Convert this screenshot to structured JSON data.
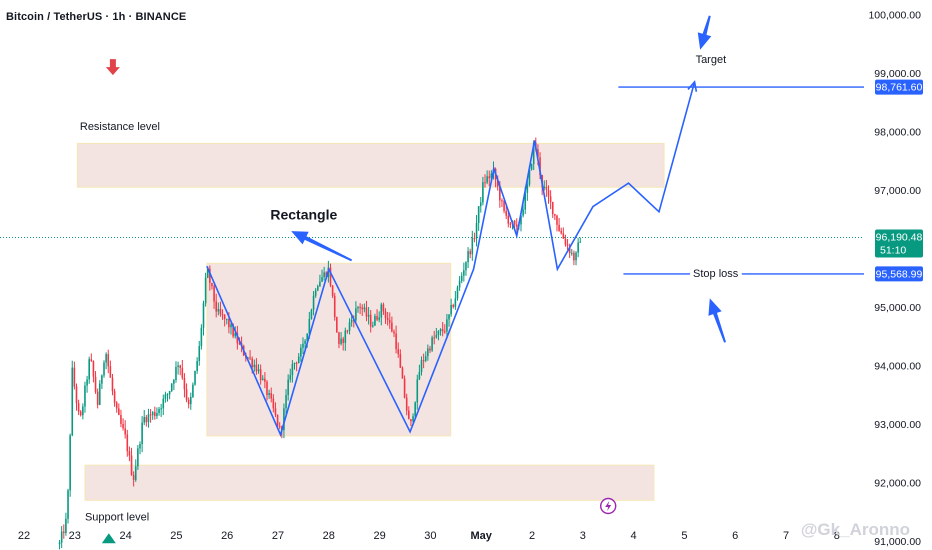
{
  "header": {
    "symbol_title": "Bitcoin / TetherUS · 1h · BINANCE"
  },
  "watermark": "@Gk_Aronno",
  "chart_data": {
    "type": "candlestick",
    "ylim": [
      90850,
      100250
    ],
    "y_ticks": [
      {
        "value": 100000,
        "label": "100,000.00"
      },
      {
        "value": 99000,
        "label": "99,000.00"
      },
      {
        "value": 98000,
        "label": "98,000.00"
      },
      {
        "value": 97000,
        "label": "97,000.00"
      },
      {
        "value": 95000,
        "label": "95,000.00"
      },
      {
        "value": 94000,
        "label": "94,000.00"
      },
      {
        "value": 93000,
        "label": "93,000.00"
      },
      {
        "value": 92000,
        "label": "92,000.00"
      },
      {
        "value": 91000,
        "label": "91,000.00"
      }
    ],
    "x_ticks": [
      {
        "day": 22,
        "label": "22"
      },
      {
        "day": 23,
        "label": "23"
      },
      {
        "day": 24,
        "label": "24"
      },
      {
        "day": 25,
        "label": "25"
      },
      {
        "day": 26,
        "label": "26"
      },
      {
        "day": 27,
        "label": "27"
      },
      {
        "day": 28,
        "label": "28"
      },
      {
        "day": 29,
        "label": "29"
      },
      {
        "day": 30,
        "label": "30"
      },
      {
        "day": 31,
        "label": "May"
      },
      {
        "day": 32,
        "label": "2"
      },
      {
        "day": 33,
        "label": "3"
      },
      {
        "day": 34,
        "label": "4"
      },
      {
        "day": 35,
        "label": "5"
      },
      {
        "day": 36,
        "label": "6"
      },
      {
        "day": 37,
        "label": "7"
      },
      {
        "day": 38,
        "label": "8"
      }
    ],
    "price_tags": [
      {
        "name": "target-price",
        "value": 98761.6,
        "label": "98,761.60",
        "color": "#2962ff"
      },
      {
        "name": "current-price",
        "value": 96190.48,
        "label": "96,190.48",
        "sublabel": "51:10",
        "color": "#089981"
      },
      {
        "name": "stoploss-price",
        "value": 95568.99,
        "label": "95,568.99",
        "color": "#2962ff"
      }
    ],
    "zones": [
      {
        "name": "resistance-zone",
        "x0": 23.05,
        "x1": 34.6,
        "y0": 97050,
        "y1": 97800
      },
      {
        "name": "rectangle-zone",
        "x0": 25.6,
        "x1": 30.4,
        "y0": 92800,
        "y1": 95750
      },
      {
        "name": "support-zone",
        "x0": 23.2,
        "x1": 34.4,
        "y0": 91700,
        "y1": 92300
      }
    ],
    "annotations": [
      {
        "name": "resistance-label",
        "text": "Resistance level",
        "x": 23.1,
        "y": 98030,
        "bold": false,
        "size": 11
      },
      {
        "name": "support-label",
        "text": "Support level",
        "x": 23.2,
        "y": 91350,
        "bold": false,
        "size": 11
      },
      {
        "name": "rectangle-label",
        "text": "Rectangle",
        "x": 26.85,
        "y": 96500,
        "bold": true,
        "size": 14
      },
      {
        "name": "target-label",
        "text": "Target",
        "x": 35.22,
        "y": 99170,
        "bold": false,
        "size": 11
      },
      {
        "name": "stoploss-label",
        "text": "Stop loss",
        "x": 35.17,
        "y": 95520,
        "bold": false,
        "size": 11
      }
    ],
    "levels": [
      {
        "name": "target-line",
        "x0": 33.7,
        "value": 98761.6,
        "color": "#2962ff"
      },
      {
        "name": "stoploss-line",
        "x0": 33.8,
        "value": 95568.99,
        "color": "#2962ff"
      }
    ],
    "current_price": 96190.48,
    "pattern_line": [
      [
        25.6,
        95700
      ],
      [
        27.05,
        92820
      ],
      [
        28.0,
        95650
      ],
      [
        29.6,
        92870
      ],
      [
        30.85,
        95650
      ],
      [
        31.25,
        97370
      ],
      [
        31.7,
        96220
      ],
      [
        32.05,
        97850
      ],
      [
        32.5,
        95650
      ],
      [
        33.2,
        96720
      ],
      [
        33.9,
        97120
      ],
      [
        34.5,
        96630
      ],
      [
        35.2,
        98850
      ]
    ],
    "arrows": [
      {
        "name": "resistance-marker-arrow",
        "x": 23.75,
        "y": 99000,
        "dir": "down",
        "color": "#e0434a"
      },
      {
        "name": "support-marker-arrow",
        "x": 23.67,
        "y": 91000,
        "dir": "up",
        "color": "#089981"
      },
      {
        "name": "target-pointer-arrow",
        "from": [
          35.5,
          99980
        ],
        "to": [
          35.31,
          99400
        ],
        "color": "#2962ff"
      },
      {
        "name": "stoploss-pointer-arrow",
        "from": [
          35.8,
          94400
        ],
        "to": [
          35.5,
          95150
        ],
        "color": "#2962ff"
      },
      {
        "name": "rectangle-pointer-arrow",
        "from": [
          28.45,
          95800
        ],
        "to": [
          27.26,
          96300
        ],
        "color": "#2962ff"
      }
    ],
    "price_path": [
      [
        22.7,
        90950
      ],
      [
        22.85,
        91400
      ],
      [
        22.95,
        93900
      ],
      [
        23.1,
        93000
      ],
      [
        23.3,
        94150
      ],
      [
        23.45,
        93350
      ],
      [
        23.6,
        94300
      ],
      [
        23.8,
        93250
      ],
      [
        24.0,
        92750
      ],
      [
        24.15,
        92050
      ],
      [
        24.35,
        93100
      ],
      [
        24.6,
        93200
      ],
      [
        24.85,
        93550
      ],
      [
        25.05,
        94100
      ],
      [
        25.25,
        93250
      ],
      [
        25.45,
        94300
      ],
      [
        25.6,
        95650
      ],
      [
        25.8,
        94900
      ],
      [
        26.0,
        94750
      ],
      [
        26.3,
        94250
      ],
      [
        26.6,
        93950
      ],
      [
        26.85,
        93400
      ],
      [
        27.05,
        92850
      ],
      [
        27.25,
        93950
      ],
      [
        27.5,
        94300
      ],
      [
        27.75,
        95400
      ],
      [
        28.0,
        95650
      ],
      [
        28.2,
        94300
      ],
      [
        28.4,
        94700
      ],
      [
        28.6,
        95050
      ],
      [
        28.85,
        94700
      ],
      [
        29.05,
        95000
      ],
      [
        29.3,
        94500
      ],
      [
        29.6,
        92900
      ],
      [
        29.8,
        94000
      ],
      [
        30.05,
        94450
      ],
      [
        30.3,
        94650
      ],
      [
        30.5,
        95200
      ],
      [
        30.7,
        95800
      ],
      [
        30.85,
        96150
      ],
      [
        31.05,
        97150
      ],
      [
        31.25,
        97300
      ],
      [
        31.45,
        96600
      ],
      [
        31.7,
        96300
      ],
      [
        31.9,
        97000
      ],
      [
        32.05,
        97850
      ],
      [
        32.2,
        97100
      ],
      [
        32.4,
        96700
      ],
      [
        32.55,
        96300
      ],
      [
        32.7,
        96050
      ],
      [
        32.85,
        95800
      ],
      [
        32.95,
        96190
      ]
    ]
  }
}
